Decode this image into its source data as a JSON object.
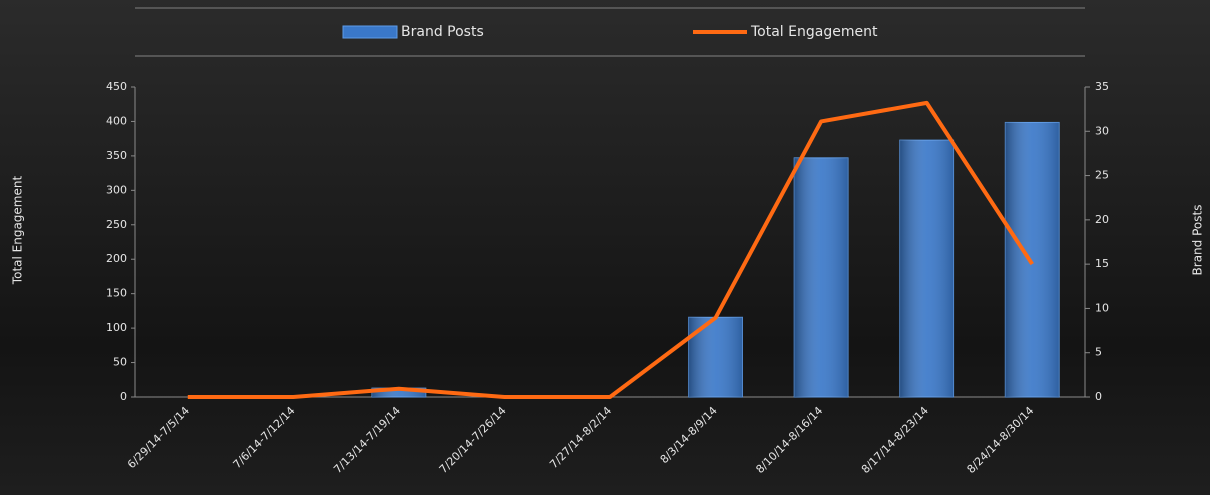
{
  "chart_data": {
    "type": "bar",
    "categories": [
      "6/29/14-7/5/14",
      "7/6/14-7/12/14",
      "7/13/14-7/19/14",
      "7/20/14-7/26/14",
      "7/27/14-8/2/14",
      "8/3/14-8/9/14",
      "8/10/14-8/16/14",
      "8/17/14-8/23/14",
      "8/24/14-8/30/14"
    ],
    "series": [
      {
        "name": "Brand Posts",
        "type": "bar",
        "axis": "y2",
        "color": "#3a78c9",
        "values": [
          0,
          0,
          1,
          0,
          0,
          9,
          27,
          29,
          31
        ]
      },
      {
        "name": "Total Engagement",
        "type": "line",
        "axis": "y",
        "color": "#ff6a13",
        "values": [
          0,
          0,
          12,
          0,
          0,
          115,
          400,
          427,
          193
        ]
      }
    ],
    "ylabel": "Total Engagement",
    "y2label": "Brand Posts",
    "ylim": [
      0,
      450
    ],
    "yticks": [
      0,
      50,
      100,
      150,
      200,
      250,
      300,
      350,
      400,
      450
    ],
    "y2lim": [
      0,
      35
    ],
    "y2ticks": [
      0,
      5,
      10,
      15,
      20,
      25,
      30,
      35
    ],
    "legend": "top"
  }
}
